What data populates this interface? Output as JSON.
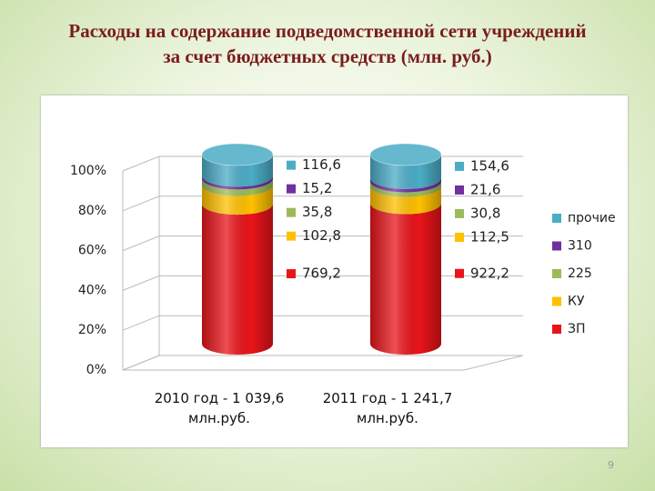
{
  "title_lines": [
    "Расходы на содержание подведомственной сети учреждений",
    "за счет бюджетных средств (млн. руб.)"
  ],
  "page_number": "9",
  "chart_data": {
    "type": "bar",
    "stacking": "percent",
    "categories": [
      "2010 год - 1 039,6 млн.руб.",
      "2011 год - 1 241,7 млн.руб."
    ],
    "series": [
      {
        "name": "ЗП",
        "color": "#e8141a",
        "values": [
          769.2,
          922.2
        ],
        "value_labels": [
          "769,2",
          "922,2"
        ]
      },
      {
        "name": "КУ",
        "color": "#ffc000",
        "values": [
          102.8,
          112.5
        ],
        "value_labels": [
          "102,8",
          "112,5"
        ]
      },
      {
        "name": "225",
        "color": "#9bbb59",
        "values": [
          35.8,
          30.8
        ],
        "value_labels": [
          "35,8",
          "30,8"
        ]
      },
      {
        "name": "310",
        "color": "#7030a0",
        "values": [
          15.2,
          21.6
        ],
        "value_labels": [
          "15,2",
          "21,6"
        ]
      },
      {
        "name": "прочие",
        "color": "#4bacc6",
        "values": [
          116.6,
          154.6
        ],
        "value_labels": [
          "116,6",
          "154,6"
        ]
      }
    ],
    "ylim": [
      0,
      100
    ],
    "yticks": [
      {
        "value": 0,
        "label": "0%"
      },
      {
        "value": 20,
        "label": "20%"
      },
      {
        "value": 40,
        "label": "40%"
      },
      {
        "value": 60,
        "label": "60%"
      },
      {
        "value": 80,
        "label": "80%"
      },
      {
        "value": 100,
        "label": "100%"
      }
    ],
    "grid": true,
    "legend": "right"
  }
}
